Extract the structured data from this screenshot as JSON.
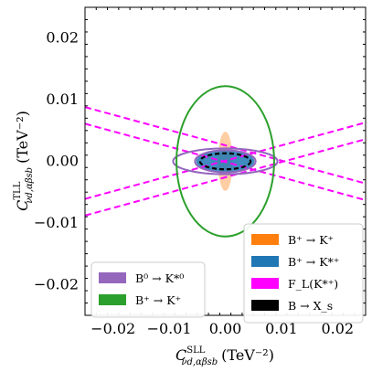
{
  "chart_data": {
    "type": "contour",
    "xlabel_main": "C",
    "xlabel_sup": "SLL",
    "xlabel_sub": "νd,αβsb",
    "xlabel_unit": "(TeV⁻²)",
    "ylabel_main": "C",
    "ylabel_sup": "TLL",
    "ylabel_sub": "νd,αβsb",
    "ylabel_unit": "(TeV⁻²)",
    "xlim": [
      -0.025,
      0.025
    ],
    "ylim": [
      -0.025,
      0.025
    ],
    "xticks": [
      -0.02,
      -0.01,
      0.0,
      0.01,
      0.02
    ],
    "yticks": [
      -0.02,
      -0.01,
      0.0,
      0.01,
      0.02
    ],
    "xtick_labels": [
      "−0.02",
      "−0.01",
      "0.00",
      "0.01",
      "0.02"
    ],
    "ytick_labels": [
      "−0.02",
      "−0.01",
      "0.00",
      "0.01",
      "0.02"
    ],
    "regions": [
      {
        "name": "B⁺ → K⁺",
        "style": "filled",
        "color": "#ff7f0e",
        "cx": 0.0,
        "cy": 0.0,
        "rx": 0.0013,
        "ry": 0.0048,
        "opacity": 0.38
      },
      {
        "name": "B⁺ → K*⁺",
        "style": "filled",
        "color": "#1f77b4",
        "cx": 0.0,
        "cy": 0.0,
        "rx": 0.0052,
        "ry": 0.0018,
        "opacity": 0.85
      },
      {
        "name": "B⁰ → K*⁰",
        "style": "outline",
        "color": "#9467bd",
        "cx": 0.0,
        "cy": 0.0,
        "rx": 0.0054,
        "ry": 0.0018
      },
      {
        "name": "B⁺ → K⁺",
        "style": "outline",
        "color": "#2ca02c",
        "cx": 0.0,
        "cy": 0.0,
        "rx": 0.0087,
        "ry": 0.0122
      },
      {
        "name": "B → X_s",
        "style": "dashed",
        "color": "#000000",
        "cx": 0.0,
        "cy": 0.0,
        "rx": 0.0045,
        "ry": 0.0013
      }
    ],
    "outer_ellipse": {
      "color": "#9467bd",
      "cx": 0.0,
      "cy": 0.0,
      "rx": 0.0093,
      "ry": 0.0021
    },
    "fl_lines": {
      "name": "F_L(K*⁺)",
      "color": "#ff00ff",
      "lines": [
        {
          "y_at_xmin": 0.0088,
          "y_at_xmax": -0.0036
        },
        {
          "y_at_xmin": 0.0061,
          "y_at_xmax": -0.0063
        },
        {
          "y_at_xmin": -0.0061,
          "y_at_xmax": 0.0063
        },
        {
          "y_at_xmin": -0.0088,
          "y_at_xmax": 0.0036
        }
      ]
    },
    "legend_lower_left": [
      {
        "label": "B⁰ → K*⁰",
        "color": "#9467bd"
      },
      {
        "label": "B⁺ → K⁺",
        "color": "#2ca02c"
      }
    ],
    "legend_lower_right": [
      {
        "label": "B⁺ → K⁺",
        "color": "#ff7f0e"
      },
      {
        "label": "B⁺ → K*⁺",
        "color": "#1f77b4"
      },
      {
        "label": "F_L(K*⁺)",
        "color": "#ff00ff"
      },
      {
        "label": "B → X_s",
        "color": "#000000"
      }
    ]
  }
}
